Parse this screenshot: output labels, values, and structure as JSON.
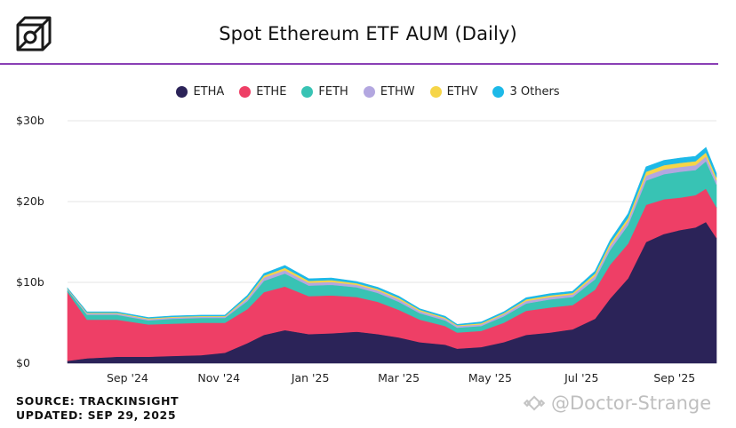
{
  "header": {
    "title": "Spot Ethereum ETF AUM (Daily)",
    "logo_icon": "cube-icon"
  },
  "footer": {
    "source": "SOURCE: TRACKINSIGHT",
    "updated": "UPDATED: SEP 29, 2025"
  },
  "watermark": {
    "text": "@Doctor-Strange",
    "icon": "binance-diamond-icon"
  },
  "colors": {
    "ETHA": "#2b2358",
    "ETHE": "#ee3f66",
    "FETH": "#38c3b4",
    "ETHW": "#b3a7e0",
    "ETHV": "#f6d548",
    "3 Others": "#1db9e8",
    "accent_rule": "#8a3fb5",
    "grid": "#e4e4e4"
  },
  "chart_data": {
    "type": "area",
    "stacked": true,
    "title": "Spot Ethereum ETF AUM (Daily)",
    "xlabel": "",
    "ylabel": "",
    "y_unit": "$ billions",
    "ylim": [
      0,
      30
    ],
    "yticks": [
      0,
      10,
      20,
      30
    ],
    "ytick_labels": [
      "$0",
      "$10b",
      "$20b",
      "$30b"
    ],
    "grid": true,
    "legend_position": "top-center",
    "xlim": [
      "2024-07-23",
      "2025-09-29"
    ],
    "xticks": [
      {
        "date": "2024-09-01",
        "label": "Sep '24"
      },
      {
        "date": "2024-11-01",
        "label": "Nov '24"
      },
      {
        "date": "2025-01-01",
        "label": "Jan '25"
      },
      {
        "date": "2025-03-01",
        "label": "Mar '25"
      },
      {
        "date": "2025-05-01",
        "label": "May '25"
      },
      {
        "date": "2025-07-01",
        "label": "Jul '25"
      },
      {
        "date": "2025-09-01",
        "label": "Sep '25"
      }
    ],
    "x": [
      "2024-07-23",
      "2024-08-05",
      "2024-08-25",
      "2024-09-15",
      "2024-10-01",
      "2024-10-20",
      "2024-11-05",
      "2024-11-20",
      "2024-12-01",
      "2024-12-15",
      "2024-12-31",
      "2025-01-15",
      "2025-02-01",
      "2025-02-15",
      "2025-03-01",
      "2025-03-15",
      "2025-04-01",
      "2025-04-09",
      "2025-04-25",
      "2025-05-10",
      "2025-05-25",
      "2025-06-10",
      "2025-06-25",
      "2025-07-10",
      "2025-07-20",
      "2025-08-01",
      "2025-08-13",
      "2025-08-25",
      "2025-09-05",
      "2025-09-15",
      "2025-09-22",
      "2025-09-29"
    ],
    "series": [
      {
        "name": "ETHA",
        "values": [
          0.3,
          0.6,
          0.8,
          0.8,
          0.9,
          1.0,
          1.3,
          2.5,
          3.5,
          4.1,
          3.6,
          3.7,
          3.9,
          3.6,
          3.2,
          2.6,
          2.3,
          1.8,
          2.0,
          2.6,
          3.5,
          3.8,
          4.2,
          5.5,
          8.0,
          10.5,
          15.0,
          16.0,
          16.5,
          16.8,
          17.5,
          15.5
        ]
      },
      {
        "name": "ETHE",
        "values": [
          8.5,
          4.8,
          4.6,
          4.0,
          4.0,
          4.0,
          3.7,
          4.2,
          5.3,
          5.4,
          4.7,
          4.7,
          4.3,
          4.0,
          3.4,
          2.8,
          2.3,
          2.0,
          2.0,
          2.4,
          3.0,
          3.1,
          3.0,
          3.6,
          4.2,
          4.3,
          4.6,
          4.3,
          4.0,
          4.0,
          4.1,
          3.8
        ]
      },
      {
        "name": "FETH",
        "values": [
          0.3,
          0.6,
          0.6,
          0.5,
          0.6,
          0.6,
          0.6,
          1.0,
          1.4,
          1.6,
          1.3,
          1.3,
          1.2,
          1.1,
          1.0,
          0.8,
          0.7,
          0.6,
          0.6,
          0.8,
          0.9,
          1.0,
          1.0,
          1.3,
          1.8,
          2.3,
          3.0,
          3.1,
          3.2,
          3.1,
          3.4,
          2.8
        ]
      },
      {
        "name": "ETHW",
        "values": [
          0.1,
          0.15,
          0.15,
          0.15,
          0.15,
          0.15,
          0.15,
          0.3,
          0.4,
          0.4,
          0.35,
          0.35,
          0.3,
          0.3,
          0.3,
          0.25,
          0.2,
          0.2,
          0.2,
          0.25,
          0.3,
          0.3,
          0.3,
          0.4,
          0.5,
          0.5,
          0.6,
          0.6,
          0.6,
          0.6,
          0.6,
          0.5
        ]
      },
      {
        "name": "ETHV",
        "values": [
          0.05,
          0.1,
          0.1,
          0.1,
          0.1,
          0.1,
          0.1,
          0.2,
          0.25,
          0.3,
          0.25,
          0.25,
          0.2,
          0.2,
          0.2,
          0.15,
          0.15,
          0.1,
          0.15,
          0.15,
          0.2,
          0.2,
          0.2,
          0.3,
          0.35,
          0.4,
          0.5,
          0.5,
          0.5,
          0.5,
          0.5,
          0.4
        ]
      },
      {
        "name": "3 Others",
        "values": [
          0.05,
          0.1,
          0.1,
          0.1,
          0.1,
          0.1,
          0.1,
          0.2,
          0.25,
          0.3,
          0.25,
          0.25,
          0.2,
          0.2,
          0.2,
          0.15,
          0.15,
          0.1,
          0.15,
          0.15,
          0.2,
          0.2,
          0.2,
          0.3,
          0.35,
          0.5,
          0.6,
          0.6,
          0.6,
          0.6,
          0.6,
          0.5
        ]
      }
    ]
  }
}
